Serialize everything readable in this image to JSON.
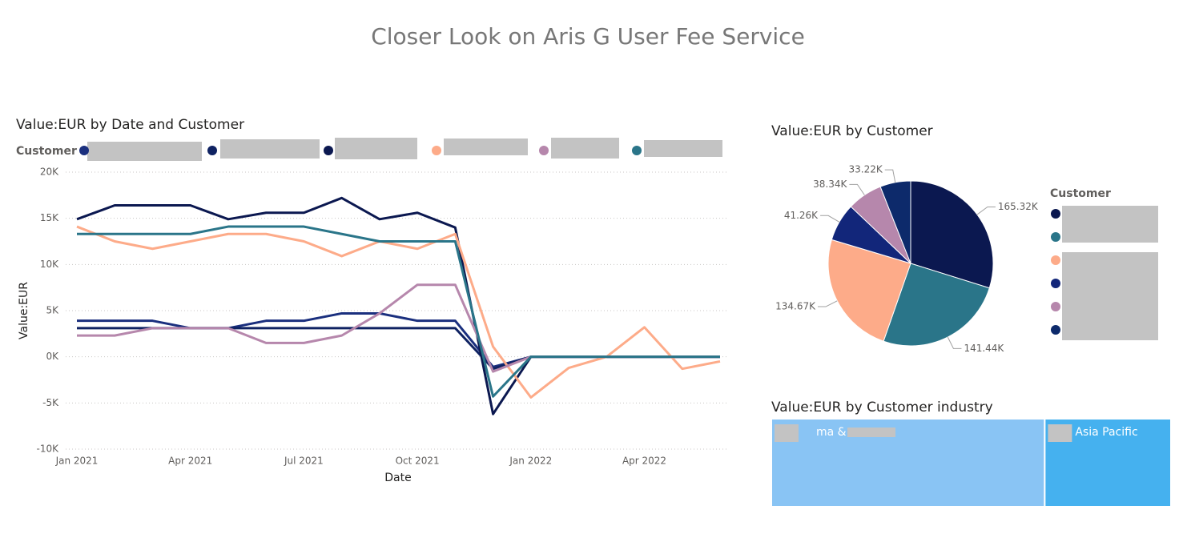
{
  "page_title": "Closer Look on Aris G User Fee Service",
  "chart_data": [
    {
      "type": "line",
      "title": "Value:EUR by Date and Customer",
      "legend_title": "Customer",
      "x_label": "Date",
      "y_label": "Value:EUR",
      "x": [
        "2021-01",
        "2021-02",
        "2021-03",
        "2021-04",
        "2021-05",
        "2021-06",
        "2021-07",
        "2021-08",
        "2021-09",
        "2021-10",
        "2021-11",
        "2021-12",
        "2022-01",
        "2022-02",
        "2022-03",
        "2022-04",
        "2022-05",
        "2022-06"
      ],
      "xticks": [
        {
          "value": "2021-01",
          "label": "Jan 2021"
        },
        {
          "value": "2021-04",
          "label": "Apr 2021"
        },
        {
          "value": "2021-07",
          "label": "Jul 2021"
        },
        {
          "value": "2021-10",
          "label": "Oct 2021"
        },
        {
          "value": "2022-01",
          "label": "Jan 2022"
        },
        {
          "value": "2022-04",
          "label": "Apr 2022"
        }
      ],
      "ylim": [
        -10000,
        20000
      ],
      "yticks": [
        {
          "value": -10000,
          "label": "-10K"
        },
        {
          "value": -5000,
          "label": "-5K"
        },
        {
          "value": 0,
          "label": "0K"
        },
        {
          "value": 5000,
          "label": "5K"
        },
        {
          "value": 10000,
          "label": "10K"
        },
        {
          "value": 15000,
          "label": "15K"
        },
        {
          "value": 20000,
          "label": "20K"
        }
      ],
      "grid": true,
      "series": [
        {
          "color": "#1a2f7e",
          "values": [
            3900,
            3900,
            3900,
            3100,
            3100,
            3900,
            3900,
            4700,
            4700,
            3900,
            3900,
            -1100,
            0,
            0,
            0,
            0,
            0,
            0
          ]
        },
        {
          "color": "#0f2262",
          "values": [
            3100,
            3100,
            3100,
            3100,
            3100,
            3100,
            3100,
            3100,
            3100,
            3100,
            3100,
            -1300,
            0,
            0,
            0,
            0,
            0,
            0
          ]
        },
        {
          "color": "#0b1850",
          "values": [
            14900,
            16400,
            16400,
            16400,
            14900,
            15600,
            15600,
            17200,
            14900,
            15600,
            14000,
            -6200,
            0,
            0,
            0,
            0,
            0,
            0
          ]
        },
        {
          "color": "#fdab89",
          "values": [
            14100,
            12500,
            11700,
            12500,
            13300,
            13300,
            12500,
            10900,
            12500,
            11700,
            13300,
            1100,
            -4400,
            -1200,
            0,
            3200,
            -1300,
            -500
          ]
        },
        {
          "color": "#b687ac",
          "values": [
            2300,
            2300,
            3100,
            3100,
            3100,
            1500,
            1500,
            2300,
            4700,
            7800,
            7800,
            -1600,
            0,
            0,
            0,
            0,
            0,
            0
          ]
        },
        {
          "color": "#2a7589",
          "values": [
            13300,
            13300,
            13300,
            13300,
            14100,
            14100,
            14100,
            13300,
            12500,
            12500,
            12500,
            -4300,
            0,
            0,
            0,
            0,
            0,
            0
          ]
        }
      ]
    },
    {
      "type": "pie",
      "title": "Value:EUR by Customer",
      "legend_title": "Customer",
      "values": [
        165320,
        141440,
        134670,
        41260,
        38340,
        33220
      ],
      "value_labels": [
        "165.32K",
        "141.44K",
        "134.67K",
        "41.26K",
        "38.34K",
        "33.22K"
      ],
      "colors": [
        "#0b1850",
        "#2a7589",
        "#fdab89",
        "#12267a",
        "#b687ac",
        "#0d2a6b"
      ]
    },
    {
      "type": "treemap",
      "title": "Value:EUR by Customer industry",
      "categories": [
        "ma &",
        "Asia Pacific"
      ],
      "values": [
        379000,
        175000
      ],
      "colors": [
        "#89c4f4",
        "#45b1ef"
      ]
    }
  ]
}
